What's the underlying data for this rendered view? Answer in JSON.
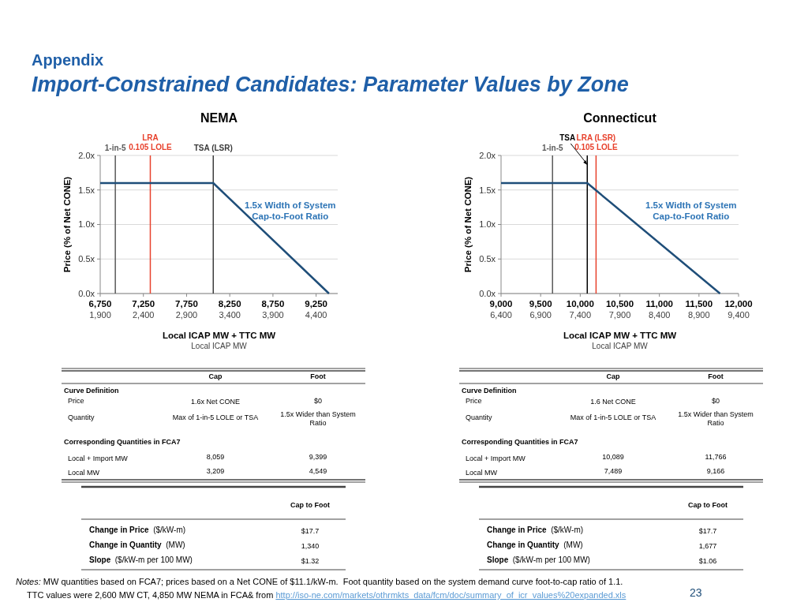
{
  "chart_data": [
    {
      "type": "other",
      "annotations": [
        "Appendix",
        "Import-Constrained Candidates: Parameter Values by Zone"
      ]
    },
    {
      "type": "line",
      "title": "NEMA",
      "xlabel": "Local ICAP MW + TTC MW",
      "x2label": "Local ICAP MW",
      "ylabel": "Price (% of Net CONE)",
      "xlim": [
        6750,
        9500
      ],
      "xticks": [
        {
          "value": 6750,
          "label": "6,750"
        },
        {
          "value": 7250,
          "label": "7,250"
        },
        {
          "value": 7750,
          "label": "7,750"
        },
        {
          "value": 8250,
          "label": "8,250"
        },
        {
          "value": 8750,
          "label": "8,750"
        },
        {
          "value": 9250,
          "label": "9,250"
        }
      ],
      "x2lim": [
        1900,
        4650
      ],
      "x2ticks": [
        {
          "value": 1900,
          "label": "1,900"
        },
        {
          "value": 2400,
          "label": "2,400"
        },
        {
          "value": 2900,
          "label": "2,900"
        },
        {
          "value": 3400,
          "label": "3,400"
        },
        {
          "value": 3900,
          "label": "3,900"
        },
        {
          "value": 4400,
          "label": "4,400"
        }
      ],
      "ylim": [
        0,
        2
      ],
      "yticks": [
        {
          "value": 0,
          "label": "0.0x"
        },
        {
          "value": 0.5,
          "label": "0.5x"
        },
        {
          "value": 1,
          "label": "1.0x"
        },
        {
          "value": 1.5,
          "label": "1.5x"
        },
        {
          "value": 2,
          "label": "2.0x"
        }
      ],
      "grid": "y",
      "series": [
        {
          "color": "#1f4e79",
          "x": [
            6750,
            8059,
            9399
          ],
          "values": [
            1.6,
            1.6,
            0
          ]
        }
      ],
      "ref_lines": [
        {
          "axis": "x",
          "value": 6925,
          "label": "1-in-5",
          "color": "#595959"
        },
        {
          "axis": "x",
          "value": 7330,
          "label": "LRA\n0.105 LOLE",
          "color": "#e8412c"
        },
        {
          "axis": "x",
          "value": 8059,
          "label": "TSA (LSR)",
          "color": "#3a3a3a"
        }
      ],
      "annotations": [
        "1.5x Width of System\nCap-to-Foot  Ratio"
      ]
    },
    {
      "type": "line",
      "title": "Connecticut",
      "xlabel": "Local ICAP MW + TTC MW",
      "x2label": "Local ICAP MW",
      "ylabel": "Price (% of Net CONE)",
      "xlim": [
        9000,
        12000
      ],
      "xticks": [
        {
          "value": 9000,
          "label": "9,000"
        },
        {
          "value": 9500,
          "label": "9,500"
        },
        {
          "value": 10000,
          "label": "10,000"
        },
        {
          "value": 10500,
          "label": "10,500"
        },
        {
          "value": 11000,
          "label": "11,000"
        },
        {
          "value": 11500,
          "label": "11,500"
        },
        {
          "value": 12000,
          "label": "12,000"
        }
      ],
      "x2lim": [
        6400,
        9400
      ],
      "x2ticks": [
        {
          "value": 6400,
          "label": "6,400"
        },
        {
          "value": 6900,
          "label": "6,900"
        },
        {
          "value": 7400,
          "label": "7,400"
        },
        {
          "value": 7900,
          "label": "7,900"
        },
        {
          "value": 8400,
          "label": "8,400"
        },
        {
          "value": 8900,
          "label": "8,900"
        },
        {
          "value": 9400,
          "label": "9,400"
        }
      ],
      "ylim": [
        0,
        2
      ],
      "yticks": [
        {
          "value": 0,
          "label": "0.0x"
        },
        {
          "value": 0.5,
          "label": "0.5x"
        },
        {
          "value": 1,
          "label": "1.0x"
        },
        {
          "value": 1.5,
          "label": "1.5x"
        },
        {
          "value": 2,
          "label": "2.0x"
        }
      ],
      "grid": "y",
      "series": [
        {
          "color": "#1f4e79",
          "x": [
            9000,
            10089,
            11766
          ],
          "values": [
            1.6,
            1.6,
            0
          ]
        }
      ],
      "ref_lines": [
        {
          "axis": "x",
          "value": 9650,
          "label": "1-in-5",
          "color": "#595959"
        },
        {
          "axis": "x",
          "value": 10089,
          "label": "TSA",
          "color": "#000000"
        },
        {
          "axis": "x",
          "value": 10200,
          "label": "LRA (LSR)\n0.105 LOLE",
          "color": "#e8412c"
        }
      ],
      "annotations": [
        "1.5x Width of System\nCap-to-Foot  Ratio"
      ]
    },
    {
      "type": "other",
      "annotations": [
        "Cap",
        "Foot",
        "Curve Definition",
        "Price",
        "1.6x Net CONE",
        "$0",
        "Quantity",
        "Max of 1-in-5 LOLE or TSA",
        "1.5x Wider than System\nRatio",
        "Corresponding Quantities in FCA7",
        "Local + Import MW",
        "8,059",
        "9,399",
        "Local MW",
        "3,209",
        "4,549",
        "Cap to Foot",
        "Change in Price  ($/kW-m)",
        "$17.7",
        "Change in Quantity  (MW)",
        "1,340",
        "Slope  ($/kW-m per 100 MW)",
        "$1.32"
      ]
    },
    {
      "type": "other",
      "annotations": [
        "Cap",
        "Foot",
        "Curve Definition",
        "Price",
        "1.6 Net CONE",
        "$0",
        "Quantity",
        "Max of 1-in-5 LOLE or TSA",
        "1.5x Wider than System\nRatio",
        "Corresponding Quantities in FCA7",
        "Local + Import MW",
        "10,089",
        "11,766",
        "Local MW",
        "7,489",
        "9,166",
        "Cap to Foot",
        "Change in Price  ($/kW-m)",
        "$17.7",
        "Change in Quantity  (MW)",
        "1,677",
        "Slope  ($/kW-m per 100 MW)",
        "$1.06"
      ]
    },
    {
      "type": "other",
      "annotations": [
        "Notes: MW quantities based on FCA7; prices based on a Net CONE of $11.1/kW-m.  Foot quantity based on the system demand curve foot-to-cap ratio of 1.1.",
        "TTC values were 2,600 MW CT, 4,850 MW NEMA in FCA& from ",
        "http://iso-ne.com/markets/othrmkts_data/fcm/doc/summary_of_icr_values%20expanded.xls",
        "23"
      ]
    }
  ]
}
